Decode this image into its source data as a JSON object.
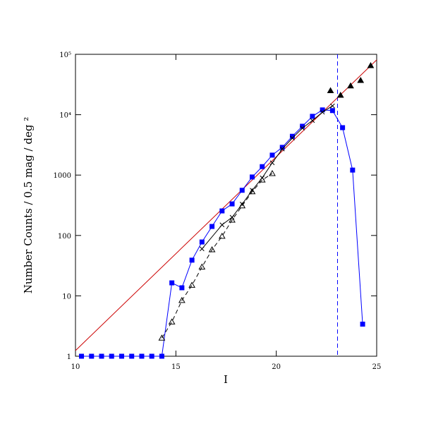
{
  "chart_data": {
    "type": "line",
    "xlabel": "I",
    "ylabel": "Number Counts / 0.5 mag / deg ²",
    "xlim": [
      10,
      25
    ],
    "xticks": [
      10,
      15,
      20,
      25
    ],
    "ylim": [
      1,
      100000
    ],
    "ylog": true,
    "yticks": [
      1,
      10,
      100,
      1000,
      {
        "value": 10000,
        "label": "10⁴"
      },
      {
        "value": 100000,
        "label": "10⁵"
      }
    ],
    "vline": {
      "x": 23.05,
      "color": "#0000ff",
      "linestyle": "dashed"
    },
    "series": [
      {
        "color": "#cc0000",
        "marker": "none",
        "linestyle": "solid",
        "x": [
          10,
          25
        ],
        "values": [
          1.24,
          81000
        ]
      },
      {
        "color": "#0000ff",
        "marker": "square",
        "linestyle": "solid",
        "x": [
          10.3,
          10.8,
          11.3,
          11.8,
          12.3,
          12.8,
          13.3,
          13.8,
          14.3,
          14.8,
          15.3,
          15.8,
          16.3,
          16.8,
          17.3,
          17.8,
          18.3,
          18.8,
          19.3,
          19.8,
          20.3,
          20.8,
          21.3,
          21.8,
          22.3,
          22.8,
          23.3,
          23.8,
          24.3
        ],
        "values": [
          1,
          1,
          1,
          1,
          1,
          1,
          1,
          1,
          1,
          16.4,
          13.6,
          39,
          78,
          141,
          255,
          333,
          560,
          930,
          1380,
          2140,
          2880,
          4390,
          6440,
          9400,
          12000,
          11700,
          6100,
          1210,
          3.4
        ]
      },
      {
        "color": "#000000",
        "marker": "triangle-open",
        "linestyle": "dashed",
        "x": [
          14.3,
          14.8,
          15.3,
          15.8,
          16.3,
          16.8,
          17.3,
          17.8,
          18.3,
          18.8,
          19.3,
          19.8
        ],
        "values": [
          2.0,
          3.7,
          8.4,
          15,
          30,
          58,
          97,
          180,
          310,
          530,
          830,
          1060
        ]
      },
      {
        "color": "#000000",
        "marker": "cross",
        "linestyle": "solid",
        "x": [
          16.3,
          17.3,
          17.8,
          18.3,
          18.8,
          19.3,
          19.8,
          20.3,
          20.8,
          21.3,
          21.8,
          22.3,
          22.8
        ],
        "values": [
          60,
          150,
          200,
          330,
          560,
          900,
          1600,
          2700,
          4100,
          6000,
          8000,
          11000,
          14000
        ]
      },
      {
        "color": "#000000",
        "marker": "triangle",
        "linestyle": "none",
        "x": [
          22.7,
          23.2,
          23.7,
          24.2,
          24.7
        ],
        "values": [
          25000,
          21000,
          30000,
          37000,
          65000
        ]
      }
    ]
  }
}
